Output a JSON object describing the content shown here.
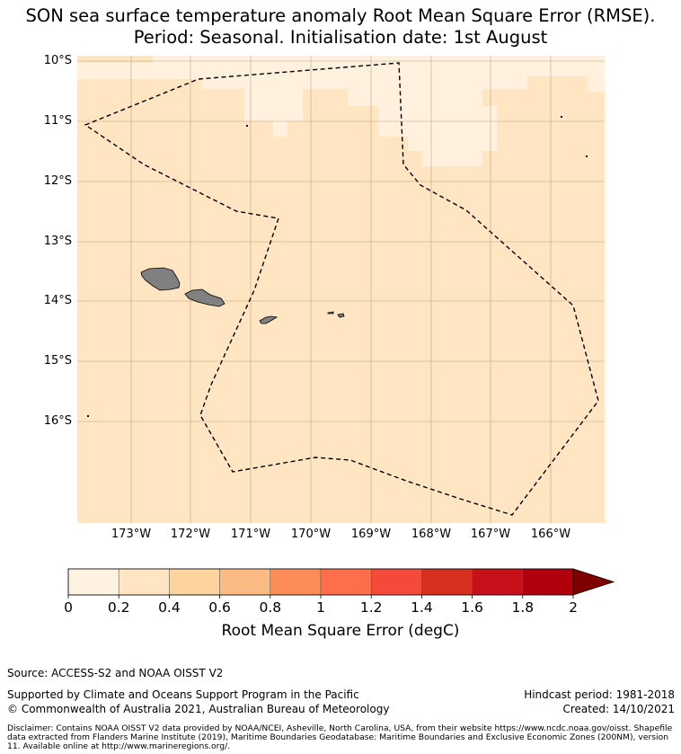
{
  "title_line1": "SON sea surface temperature anomaly Root Mean Square Error (RMSE).",
  "title_line2": "Period: Seasonal. Initialisation date: 1st August",
  "map": {
    "lat_labels": [
      "10°S",
      "11°S",
      "12°S",
      "13°S",
      "14°S",
      "15°S",
      "16°S"
    ],
    "lon_labels": [
      "173°W",
      "172°W",
      "171°W",
      "170°W",
      "169°W",
      "168°W",
      "167°W",
      "166°W"
    ],
    "ocean_color": "#ffe5c2",
    "low_color": "#fff1dd",
    "land_color": "#808080",
    "eez_boundary_style": "dashed"
  },
  "colorbar": {
    "ticks": [
      "0",
      "0.2",
      "0.4",
      "0.6",
      "0.8",
      "1",
      "1.2",
      "1.4",
      "1.6",
      "1.8",
      "2"
    ],
    "colors": [
      "#fff2e0",
      "#ffe5c2",
      "#fdd49e",
      "#fdbb84",
      "#fc8d59",
      "#ff6e4a",
      "#f5493a",
      "#d7301f",
      "#c8101a",
      "#b0000e"
    ],
    "extend_color": "#7f0000",
    "label": "Root Mean Square Error (degC)"
  },
  "footer": {
    "source": "Source: ACCESS-S2 and NOAA OISST V2",
    "support": "Supported by Climate and Oceans Support Program in the Pacific",
    "copyright": "© Commonwealth of Australia 2021, Australian Bureau of Meteorology",
    "hindcast": "Hindcast period: 1981-2018",
    "created": "Created: 14/10/2021",
    "disclaimer": "Disclaimer: Contains NOAA OISST V2 data provided by NOAA/NCEI, Asheville, North Carolina, USA, from their website https://www.ncdc.noaa.gov/oisst. Shapefile data extracted from Flanders Marine Institute (2019), Maritime Boundaries Geodatabase: Maritime Boundaries and Exclusive Economic Zones (200NM), version 11. Available online at http://www.marineregions.org/."
  }
}
